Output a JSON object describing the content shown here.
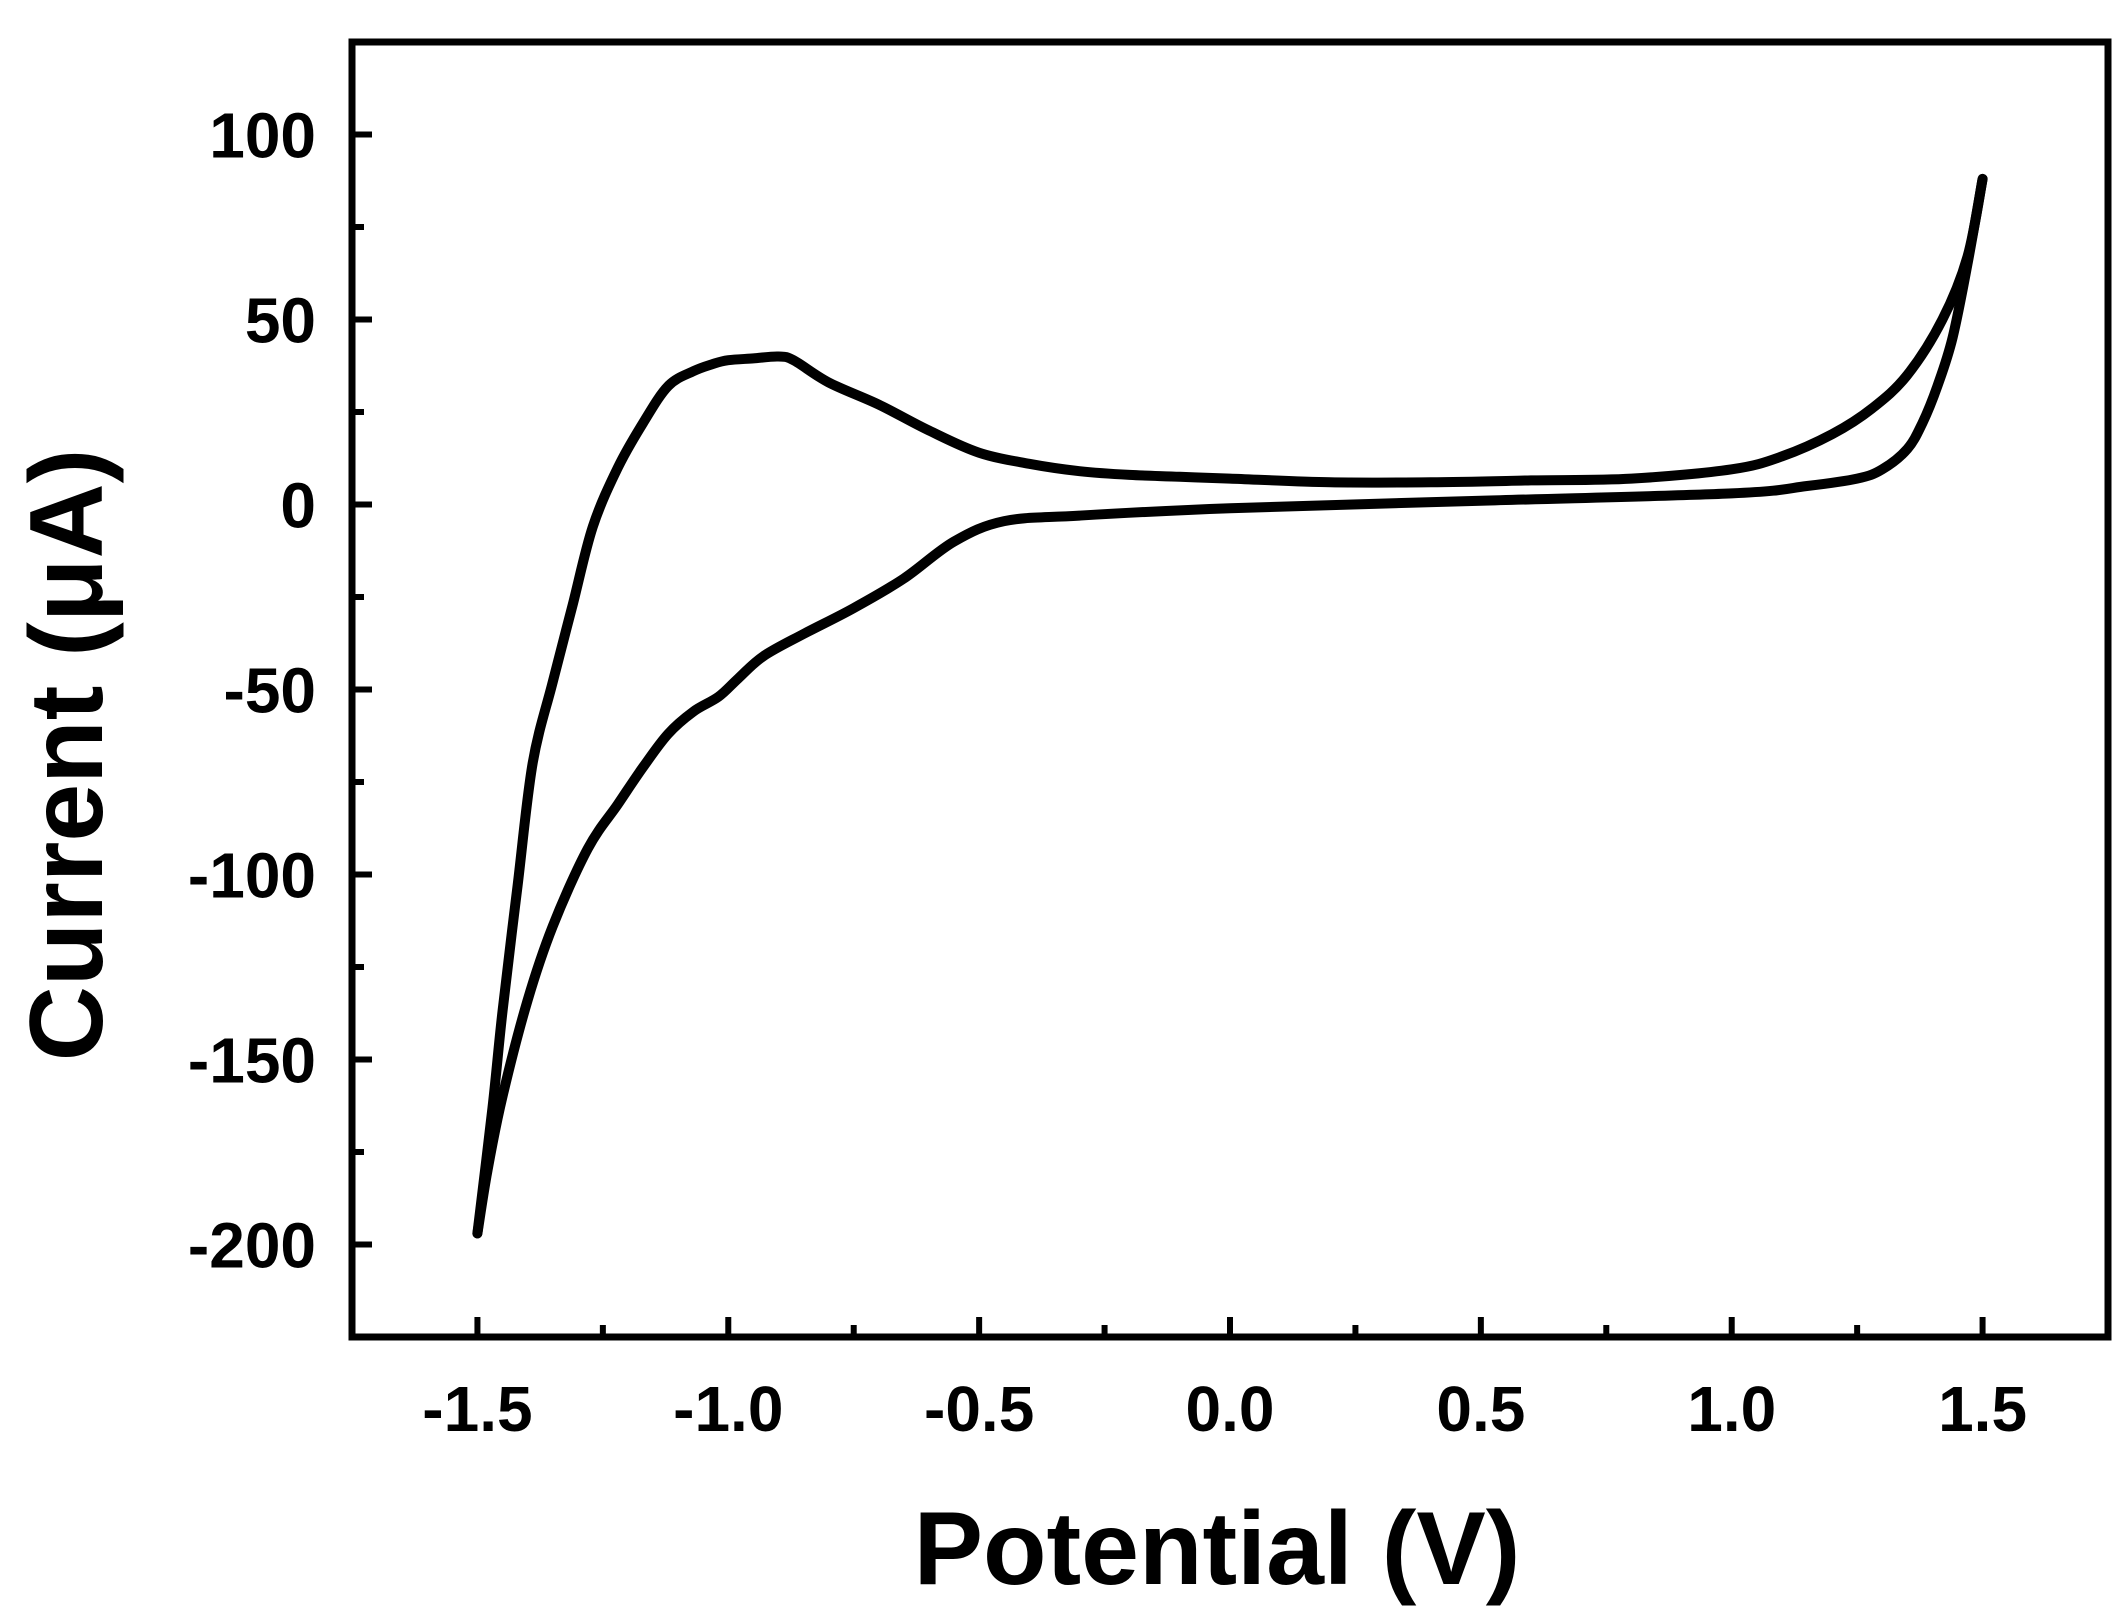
{
  "chart_data": {
    "type": "line",
    "title": "",
    "xlabel": "Potential (V)",
    "ylabel": "Current (μA)",
    "xlim": [
      -1.75,
      1.75
    ],
    "ylim": [
      -225,
      125
    ],
    "grid": false,
    "legend": "none",
    "colors": {
      "line": "#000000",
      "axes": "#000000",
      "background": "#ffffff"
    },
    "x_ticks": [
      {
        "value": -1.5,
        "label": "-1.5"
      },
      {
        "value": -1.0,
        "label": "-1.0"
      },
      {
        "value": -0.5,
        "label": "-0.5"
      },
      {
        "value": 0.0,
        "label": "0.0"
      },
      {
        "value": 0.5,
        "label": "0.5"
      },
      {
        "value": 1.0,
        "label": "1.0"
      },
      {
        "value": 1.5,
        "label": "1.5"
      }
    ],
    "x_minor_ticks": [
      -1.25,
      -0.75,
      -0.25,
      0.25,
      0.75,
      1.25
    ],
    "y_ticks": [
      {
        "value": 100,
        "label": "100"
      },
      {
        "value": 50,
        "label": "50"
      },
      {
        "value": 0,
        "label": "0"
      },
      {
        "value": -50,
        "label": "-50"
      },
      {
        "value": -100,
        "label": "-100"
      },
      {
        "value": -150,
        "label": "-150"
      },
      {
        "value": -200,
        "label": "-200"
      }
    ],
    "y_minor_ticks": [
      75,
      25,
      -25,
      -75,
      -125,
      -175
    ],
    "series": [
      {
        "x": [
          -1.5,
          -1.47,
          -1.45,
          -1.42,
          -1.39,
          -1.35,
          -1.31,
          -1.27,
          -1.22,
          -1.17,
          -1.12,
          -1.07,
          -1.03,
          -1.0,
          -0.95,
          -0.9,
          -0.87,
          -0.8,
          -0.7,
          -0.6,
          -0.5,
          -0.4,
          -0.3,
          -0.2,
          -0.1,
          0.0,
          0.2,
          0.4,
          0.6,
          0.8,
          1.0,
          1.1,
          1.2,
          1.28,
          1.35,
          1.42,
          1.47,
          1.5
        ],
        "y": [
          -197,
          -163,
          -137,
          -103,
          -70,
          -48,
          -27,
          -6,
          10,
          22,
          32,
          36,
          38,
          39,
          39.5,
          40,
          39,
          33,
          27,
          20,
          14,
          11,
          9,
          8,
          7.5,
          7,
          6,
          6,
          6.5,
          7,
          9.5,
          13,
          19,
          26,
          35,
          50,
          67,
          88
        ]
      },
      {
        "x": [
          1.5,
          1.47,
          1.44,
          1.41,
          1.38,
          1.35,
          1.3,
          1.25,
          1.15,
          1.0,
          0.5,
          0.0,
          -0.3,
          -0.45,
          -0.55,
          -0.65,
          -0.75,
          -0.85,
          -0.93,
          -0.98,
          -1.02,
          -1.07,
          -1.12,
          -1.17,
          -1.22,
          -1.28,
          -1.35,
          -1.4,
          -1.45,
          -1.48,
          -1.5
        ],
        "y": [
          88,
          65,
          45,
          32,
          22,
          15,
          9.5,
          7,
          5,
          3,
          1,
          -1,
          -3,
          -4.5,
          -10,
          -20,
          -28,
          -35,
          -41,
          -47,
          -52,
          -56,
          -62,
          -71,
          -81,
          -93,
          -114,
          -134,
          -160,
          -180,
          -197
        ]
      }
    ]
  }
}
